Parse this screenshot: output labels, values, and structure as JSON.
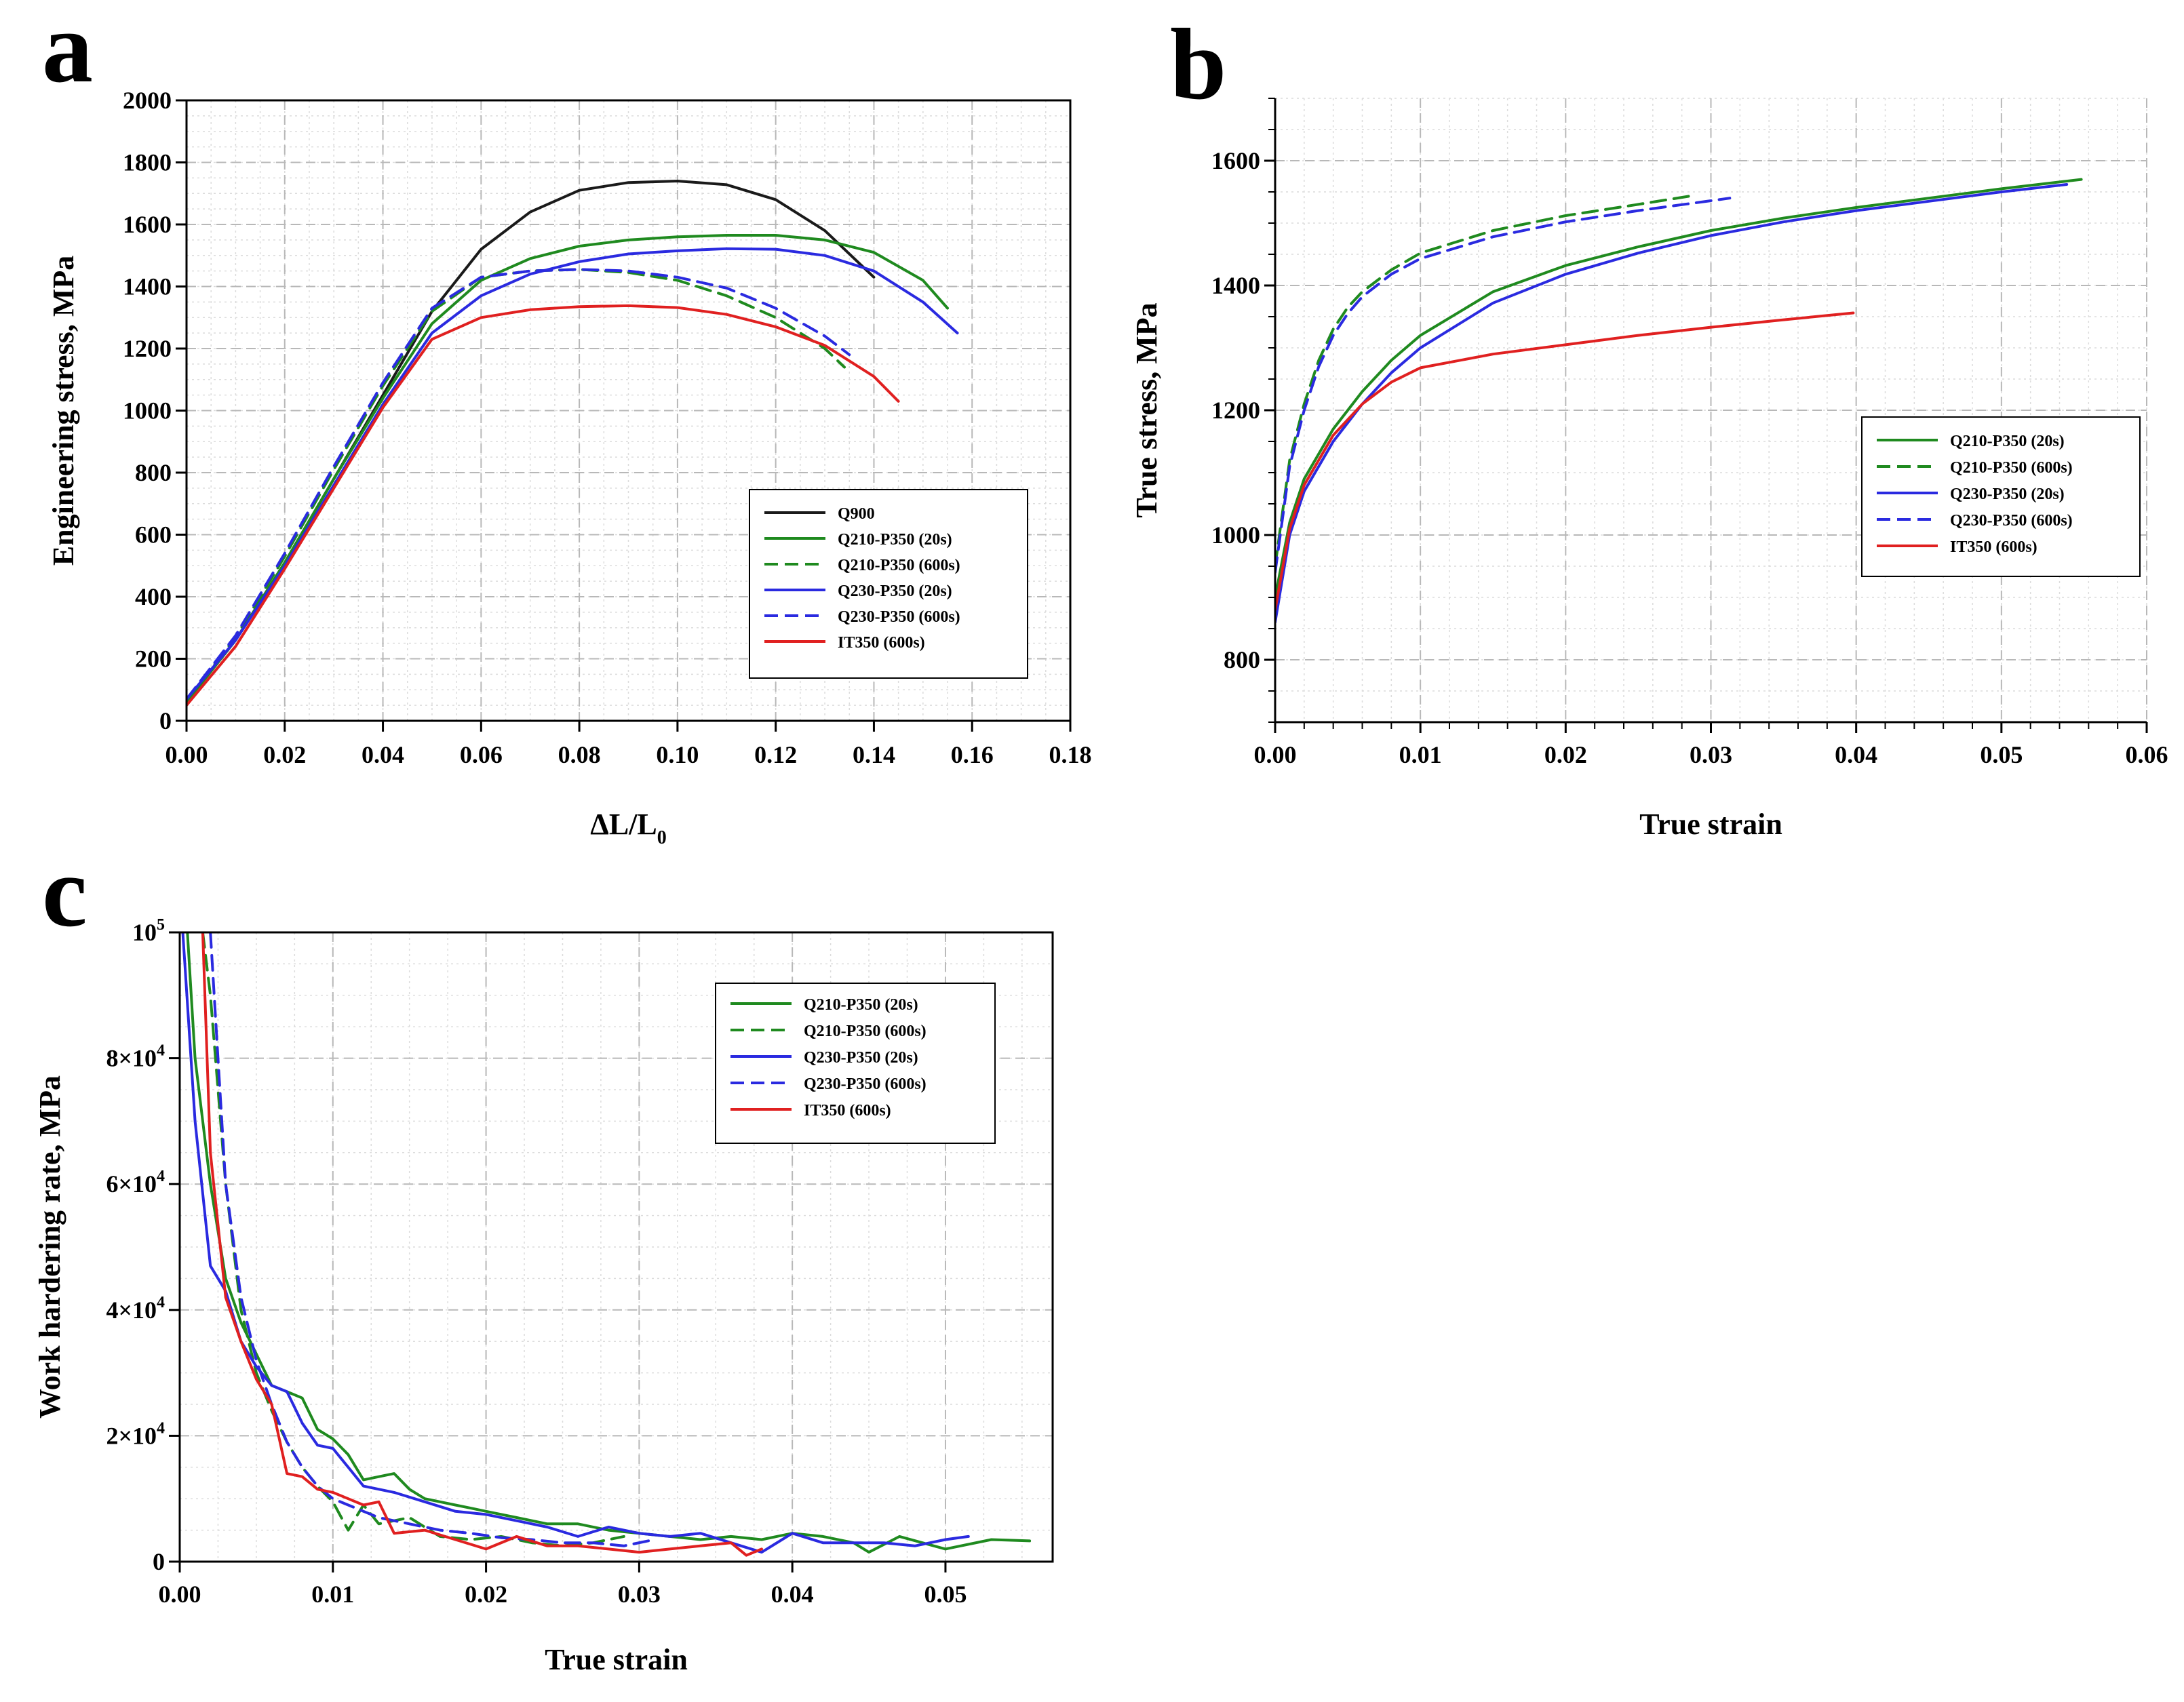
{
  "figure": {
    "panels": [
      "a",
      "b",
      "c"
    ]
  },
  "chart_data": [
    {
      "panel": "a",
      "type": "line",
      "title": "",
      "xlabel": "ΔL/L",
      "xlabel_sub": "0",
      "ylabel": "Engineering stress, MPa",
      "xlim": [
        0,
        0.18
      ],
      "ylim": [
        0,
        2000
      ],
      "xticks": [
        0,
        0.02,
        0.04,
        0.06,
        0.08,
        0.1,
        0.12,
        0.14,
        0.16,
        0.18
      ],
      "xtick_labels": [
        "0.00",
        "0.02",
        "0.04",
        "0.06",
        "0.08",
        "0.10",
        "0.12",
        "0.14",
        "0.16",
        "0.18"
      ],
      "yticks": [
        0,
        200,
        400,
        600,
        800,
        1000,
        1200,
        1400,
        1600,
        1800,
        2000
      ],
      "ytick_labels": [
        "0",
        "200",
        "400",
        "600",
        "800",
        "1000",
        "1200",
        "1400",
        "1600",
        "1800",
        "2000"
      ],
      "legend_position": "right-middle",
      "series": [
        {
          "name": "Q900",
          "color": "#1a1a1a",
          "dash": "solid",
          "x": [
            0,
            0.01,
            0.02,
            0.03,
            0.04,
            0.05,
            0.06,
            0.07,
            0.08,
            0.09,
            0.1,
            0.11,
            0.12,
            0.13,
            0.14
          ],
          "y": [
            60,
            260,
            510,
            780,
            1050,
            1320,
            1520,
            1640,
            1710,
            1735,
            1740,
            1728,
            1680,
            1580,
            1430
          ]
        },
        {
          "name": "Q210-P350 (20s)",
          "color": "#1f8a1f",
          "dash": "solid",
          "x": [
            0,
            0.01,
            0.02,
            0.03,
            0.04,
            0.05,
            0.06,
            0.07,
            0.08,
            0.09,
            0.1,
            0.11,
            0.12,
            0.13,
            0.14,
            0.15,
            0.155
          ],
          "y": [
            60,
            260,
            510,
            780,
            1040,
            1280,
            1420,
            1490,
            1530,
            1550,
            1560,
            1565,
            1565,
            1550,
            1510,
            1420,
            1330
          ]
        },
        {
          "name": "Q210-P350 (600s)",
          "color": "#1f8a1f",
          "dash": "dashed",
          "x": [
            0,
            0.01,
            0.02,
            0.03,
            0.04,
            0.05,
            0.06,
            0.07,
            0.08,
            0.09,
            0.1,
            0.11,
            0.12,
            0.13,
            0.134
          ],
          "y": [
            65,
            270,
            530,
            810,
            1080,
            1320,
            1430,
            1450,
            1455,
            1445,
            1420,
            1370,
            1300,
            1200,
            1140
          ]
        },
        {
          "name": "Q230-P350 (20s)",
          "color": "#2a2ae0",
          "dash": "solid",
          "x": [
            0,
            0.01,
            0.02,
            0.03,
            0.04,
            0.05,
            0.06,
            0.07,
            0.08,
            0.09,
            0.1,
            0.11,
            0.12,
            0.13,
            0.14,
            0.15,
            0.157
          ],
          "y": [
            70,
            260,
            500,
            760,
            1020,
            1250,
            1370,
            1440,
            1480,
            1505,
            1515,
            1522,
            1520,
            1500,
            1450,
            1350,
            1250
          ]
        },
        {
          "name": "Q230-P350 (600s)",
          "color": "#2a2ae0",
          "dash": "dashed",
          "x": [
            0,
            0.01,
            0.02,
            0.03,
            0.04,
            0.05,
            0.06,
            0.07,
            0.08,
            0.09,
            0.1,
            0.11,
            0.12,
            0.13,
            0.135
          ],
          "y": [
            70,
            275,
            540,
            820,
            1090,
            1330,
            1430,
            1450,
            1455,
            1450,
            1430,
            1395,
            1330,
            1240,
            1180
          ]
        },
        {
          "name": "IT350 (600s)",
          "color": "#e02020",
          "dash": "solid",
          "x": [
            0,
            0.01,
            0.02,
            0.03,
            0.04,
            0.05,
            0.06,
            0.07,
            0.08,
            0.09,
            0.1,
            0.11,
            0.12,
            0.13,
            0.14,
            0.145
          ],
          "y": [
            50,
            240,
            490,
            750,
            1010,
            1230,
            1300,
            1325,
            1335,
            1338,
            1332,
            1310,
            1270,
            1210,
            1110,
            1030
          ]
        }
      ]
    },
    {
      "panel": "b",
      "type": "line",
      "title": "",
      "xlabel": "True strain",
      "ylabel": "True stress, MPa",
      "xlim": [
        0,
        0.06
      ],
      "ylim": [
        700,
        1700
      ],
      "xticks": [
        0,
        0.01,
        0.02,
        0.03,
        0.04,
        0.05,
        0.06
      ],
      "xtick_labels": [
        "0.00",
        "0.01",
        "0.02",
        "0.03",
        "0.04",
        "0.05",
        "0.06"
      ],
      "yticks": [
        800,
        1000,
        1200,
        1400,
        1600
      ],
      "ytick_labels": [
        "800",
        "1000",
        "1200",
        "1400",
        "1600"
      ],
      "legend_position": "right-middle",
      "series": [
        {
          "name": "Q210-P350 (20s)",
          "color": "#1f8a1f",
          "dash": "solid",
          "x": [
            0,
            0.001,
            0.002,
            0.004,
            0.006,
            0.008,
            0.01,
            0.015,
            0.02,
            0.025,
            0.03,
            0.035,
            0.04,
            0.045,
            0.05,
            0.0555
          ],
          "y": [
            900,
            1020,
            1090,
            1170,
            1230,
            1280,
            1320,
            1390,
            1432,
            1462,
            1488,
            1508,
            1525,
            1540,
            1555,
            1570
          ]
        },
        {
          "name": "Q210-P350 (600s)",
          "color": "#1f8a1f",
          "dash": "dashed",
          "x": [
            0,
            0.001,
            0.002,
            0.003,
            0.004,
            0.005,
            0.006,
            0.008,
            0.01,
            0.015,
            0.02,
            0.025,
            0.029
          ],
          "y": [
            950,
            1120,
            1210,
            1280,
            1330,
            1365,
            1390,
            1425,
            1452,
            1488,
            1512,
            1530,
            1545
          ]
        },
        {
          "name": "Q230-P350 (20s)",
          "color": "#2a2ae0",
          "dash": "solid",
          "x": [
            0,
            0.001,
            0.002,
            0.004,
            0.006,
            0.008,
            0.01,
            0.015,
            0.02,
            0.025,
            0.03,
            0.035,
            0.04,
            0.045,
            0.05,
            0.0545
          ],
          "y": [
            860,
            1000,
            1070,
            1150,
            1210,
            1260,
            1300,
            1372,
            1418,
            1452,
            1480,
            1502,
            1520,
            1535,
            1550,
            1562
          ]
        },
        {
          "name": "Q230-P350 (600s)",
          "color": "#2a2ae0",
          "dash": "dashed",
          "x": [
            0,
            0.001,
            0.002,
            0.003,
            0.004,
            0.005,
            0.006,
            0.008,
            0.01,
            0.015,
            0.02,
            0.025,
            0.0313
          ],
          "y": [
            940,
            1110,
            1200,
            1270,
            1320,
            1355,
            1382,
            1418,
            1443,
            1478,
            1502,
            1520,
            1540
          ]
        },
        {
          "name": "IT350 (600s)",
          "color": "#e02020",
          "dash": "solid",
          "x": [
            0,
            0.001,
            0.002,
            0.004,
            0.006,
            0.008,
            0.01,
            0.015,
            0.02,
            0.025,
            0.03,
            0.035,
            0.0398
          ],
          "y": [
            880,
            1010,
            1080,
            1160,
            1210,
            1245,
            1268,
            1290,
            1305,
            1320,
            1333,
            1345,
            1356
          ]
        }
      ]
    },
    {
      "panel": "c",
      "type": "line",
      "title": "",
      "xlabel": "True strain",
      "ylabel": "Work hardering rate, MPa",
      "xlim": [
        0,
        0.057
      ],
      "ylim": [
        0,
        100000
      ],
      "xticks": [
        0,
        0.01,
        0.02,
        0.03,
        0.04,
        0.05
      ],
      "xtick_labels": [
        "0.00",
        "0.01",
        "0.02",
        "0.03",
        "0.04",
        "0.05"
      ],
      "yticks": [
        0,
        20000,
        40000,
        60000,
        80000,
        100000
      ],
      "ytick_labels": [
        {
          "base": "0",
          "exp": ""
        },
        {
          "base": "2×10",
          "exp": "4"
        },
        {
          "base": "4×10",
          "exp": "4"
        },
        {
          "base": "6×10",
          "exp": "4"
        },
        {
          "base": "8×10",
          "exp": "4"
        },
        {
          "base": "10",
          "exp": "5"
        }
      ],
      "legend_position": "top-right",
      "series": [
        {
          "name": "Q210-P350 (20s)",
          "color": "#1f8a1f",
          "dash": "solid",
          "x": [
            0.0005,
            0.001,
            0.002,
            0.003,
            0.004,
            0.005,
            0.006,
            0.007,
            0.008,
            0.009,
            0.01,
            0.011,
            0.012,
            0.013,
            0.014,
            0.015,
            0.016,
            0.017,
            0.018,
            0.019,
            0.02,
            0.022,
            0.024,
            0.026,
            0.028,
            0.03,
            0.032,
            0.034,
            0.036,
            0.038,
            0.04,
            0.042,
            0.044,
            0.045,
            0.047,
            0.05,
            0.053,
            0.0555
          ],
          "y": [
            100000,
            80000,
            60000,
            45000,
            38000,
            33000,
            28000,
            27000,
            26000,
            21000,
            19500,
            17000,
            13000,
            13500,
            14000,
            11500,
            10000,
            9500,
            9000,
            8500,
            8000,
            7000,
            6000,
            6000,
            5000,
            4500,
            4000,
            3500,
            4000,
            3500,
            4500,
            4000,
            3000,
            1500,
            4000,
            2000,
            3500,
            3300
          ]
        },
        {
          "name": "Q210-P350 (600s)",
          "color": "#1f8a1f",
          "dash": "dashed",
          "x": [
            0.0015,
            0.002,
            0.003,
            0.004,
            0.005,
            0.006,
            0.007,
            0.008,
            0.009,
            0.01,
            0.011,
            0.012,
            0.013,
            0.015,
            0.017,
            0.019,
            0.021,
            0.023,
            0.025,
            0.027,
            0.029
          ],
          "y": [
            100000,
            90000,
            60000,
            40000,
            30000,
            24000,
            19000,
            15000,
            12000,
            9500,
            5000,
            9000,
            6000,
            7000,
            4000,
            3500,
            4000,
            3000,
            2500,
            3000,
            4000
          ]
        },
        {
          "name": "Q230-P350 (20s)",
          "color": "#2a2ae0",
          "dash": "solid",
          "x": [
            0.0002,
            0.001,
            0.002,
            0.003,
            0.004,
            0.005,
            0.006,
            0.007,
            0.008,
            0.009,
            0.01,
            0.011,
            0.012,
            0.014,
            0.016,
            0.018,
            0.02,
            0.022,
            0.024,
            0.026,
            0.028,
            0.03,
            0.032,
            0.034,
            0.036,
            0.038,
            0.04,
            0.042,
            0.044,
            0.046,
            0.048,
            0.05,
            0.0515
          ],
          "y": [
            100000,
            70000,
            47000,
            43000,
            35000,
            31000,
            28000,
            27000,
            22000,
            18500,
            18000,
            15000,
            12000,
            11000,
            9500,
            8000,
            7500,
            6500,
            5500,
            4000,
            5500,
            4500,
            4000,
            4500,
            3000,
            1500,
            4500,
            3000,
            3000,
            3000,
            2500,
            3500,
            4000
          ]
        },
        {
          "name": "Q230-P350 (600s)",
          "color": "#2a2ae0",
          "dash": "dashed",
          "x": [
            0.002,
            0.0025,
            0.003,
            0.004,
            0.005,
            0.006,
            0.007,
            0.008,
            0.009,
            0.01,
            0.011,
            0.012,
            0.013,
            0.015,
            0.017,
            0.019,
            0.021,
            0.023,
            0.025,
            0.027,
            0.029,
            0.031
          ],
          "y": [
            100000,
            80000,
            60000,
            42000,
            32000,
            25000,
            19000,
            15000,
            12000,
            10000,
            9000,
            8000,
            7000,
            6000,
            5000,
            4500,
            3800,
            3500,
            3000,
            3000,
            2500,
            3500
          ]
        },
        {
          "name": "IT350 (600s)",
          "color": "#e02020",
          "dash": "solid",
          "x": [
            0.0015,
            0.002,
            0.003,
            0.004,
            0.005,
            0.006,
            0.007,
            0.008,
            0.009,
            0.01,
            0.011,
            0.012,
            0.013,
            0.014,
            0.016,
            0.018,
            0.02,
            0.022,
            0.024,
            0.026,
            0.028,
            0.03,
            0.032,
            0.034,
            0.036,
            0.037,
            0.038
          ],
          "y": [
            100000,
            65000,
            42000,
            35000,
            29000,
            25000,
            14000,
            13500,
            11500,
            11000,
            10000,
            9000,
            9500,
            4500,
            5000,
            3500,
            2000,
            4000,
            2500,
            2500,
            2000,
            1500,
            2000,
            2500,
            3000,
            1000,
            2000
          ]
        }
      ]
    }
  ]
}
